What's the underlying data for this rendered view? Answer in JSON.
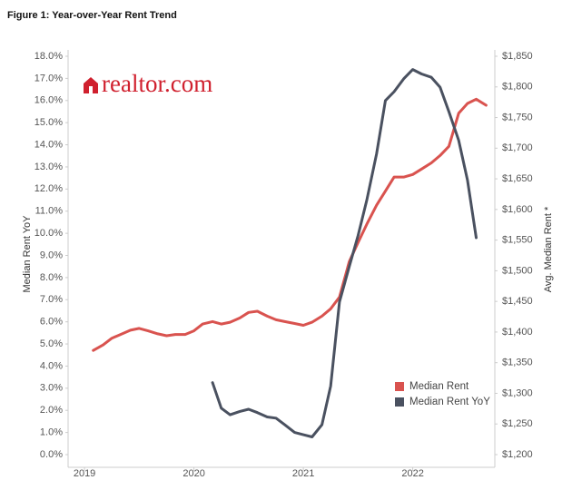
{
  "logo": "realtor.com",
  "chart_data": {
    "type": "line",
    "title": "Figure 1: Year-over-Year Rent Trend",
    "y_label": "Median Rent YoY",
    "y2_label": "Avg. Median Rent *",
    "x": [
      2019.08,
      2019.17,
      2019.25,
      2019.33,
      2019.42,
      2019.5,
      2019.58,
      2019.67,
      2019.75,
      2019.83,
      2019.92,
      2020.0,
      2020.08,
      2020.17,
      2020.25,
      2020.33,
      2020.42,
      2020.5,
      2020.58,
      2020.67,
      2020.75,
      2020.83,
      2020.92,
      2021.0,
      2021.08,
      2021.17,
      2021.25,
      2021.33,
      2021.42,
      2021.5,
      2021.58,
      2021.67,
      2021.75,
      2021.83,
      2021.92,
      2022.0,
      2022.08,
      2022.17,
      2022.25,
      2022.33,
      2022.42,
      2022.5,
      2022.58,
      2022.67
    ],
    "series": [
      {
        "name": "Median Rent",
        "color": "#d9534f",
        "axis": "y2",
        "values": [
          1370,
          1379,
          1390,
          1396,
          1403,
          1406,
          1402,
          1397,
          1394,
          1396,
          1396,
          1402,
          1413,
          1417,
          1413,
          1416,
          1423,
          1432,
          1434,
          1426,
          1420,
          1417,
          1414,
          1411,
          1416,
          1426,
          1438,
          1457,
          1515,
          1546,
          1576,
          1607,
          1630,
          1653,
          1653,
          1657,
          1666,
          1676,
          1688,
          1703,
          1757,
          1773,
          1780,
          1770
        ]
      },
      {
        "name": "Median Rent YoY",
        "color": "#4a5160",
        "values": [
          null,
          null,
          null,
          null,
          null,
          null,
          null,
          null,
          null,
          null,
          null,
          null,
          null,
          3.25,
          2.1,
          1.8,
          1.95,
          2.05,
          1.9,
          1.7,
          1.65,
          1.35,
          1.0,
          0.9,
          0.8,
          1.35,
          3.1,
          6.9,
          8.5,
          9.9,
          11.5,
          13.6,
          16.0,
          16.4,
          17.0,
          17.4,
          17.2,
          17.05,
          16.6,
          15.5,
          14.2,
          12.4,
          9.8,
          null
        ]
      }
    ],
    "xlim": [
      2018.85,
      2022.75
    ],
    "xticks": [
      2019,
      2020,
      2021,
      2022
    ],
    "ylim": [
      0,
      18
    ],
    "yticks": [
      {
        "value": 0,
        "label": "0.0%"
      },
      {
        "value": 1,
        "label": "1.0%"
      },
      {
        "value": 2,
        "label": "2.0%"
      },
      {
        "value": 3,
        "label": "3.0%"
      },
      {
        "value": 4,
        "label": "4.0%"
      },
      {
        "value": 5,
        "label": "5.0%"
      },
      {
        "value": 6,
        "label": "6.0%"
      },
      {
        "value": 7,
        "label": "7.0%"
      },
      {
        "value": 8,
        "label": "8.0%"
      },
      {
        "value": 9,
        "label": "9.0%"
      },
      {
        "value": 10,
        "label": "10.0%"
      },
      {
        "value": 11,
        "label": "11.0%"
      },
      {
        "value": 12,
        "label": "12.0%"
      },
      {
        "value": 13,
        "label": "13.0%"
      },
      {
        "value": 14,
        "label": "14.0%"
      },
      {
        "value": 15,
        "label": "15.0%"
      },
      {
        "value": 16,
        "label": "16.0%"
      },
      {
        "value": 17,
        "label": "17.0%"
      },
      {
        "value": 18,
        "label": "18.0%"
      }
    ],
    "y2lim": [
      1200,
      1850
    ],
    "y2ticks": [
      {
        "value": 1200,
        "label": "$1,200"
      },
      {
        "value": 1250,
        "label": "$1,250"
      },
      {
        "value": 1300,
        "label": "$1,300"
      },
      {
        "value": 1350,
        "label": "$1,350"
      },
      {
        "value": 1400,
        "label": "$1,400"
      },
      {
        "value": 1450,
        "label": "$1,450"
      },
      {
        "value": 1500,
        "label": "$1,500"
      },
      {
        "value": 1550,
        "label": "$1,550"
      },
      {
        "value": 1600,
        "label": "$1,600"
      },
      {
        "value": 1650,
        "label": "$1,650"
      },
      {
        "value": 1700,
        "label": "$1,700"
      },
      {
        "value": 1750,
        "label": "$1,750"
      },
      {
        "value": 1800,
        "label": "$1,800"
      },
      {
        "value": 1850,
        "label": "$1,850"
      }
    ],
    "legend": "lower right",
    "grid": false
  }
}
